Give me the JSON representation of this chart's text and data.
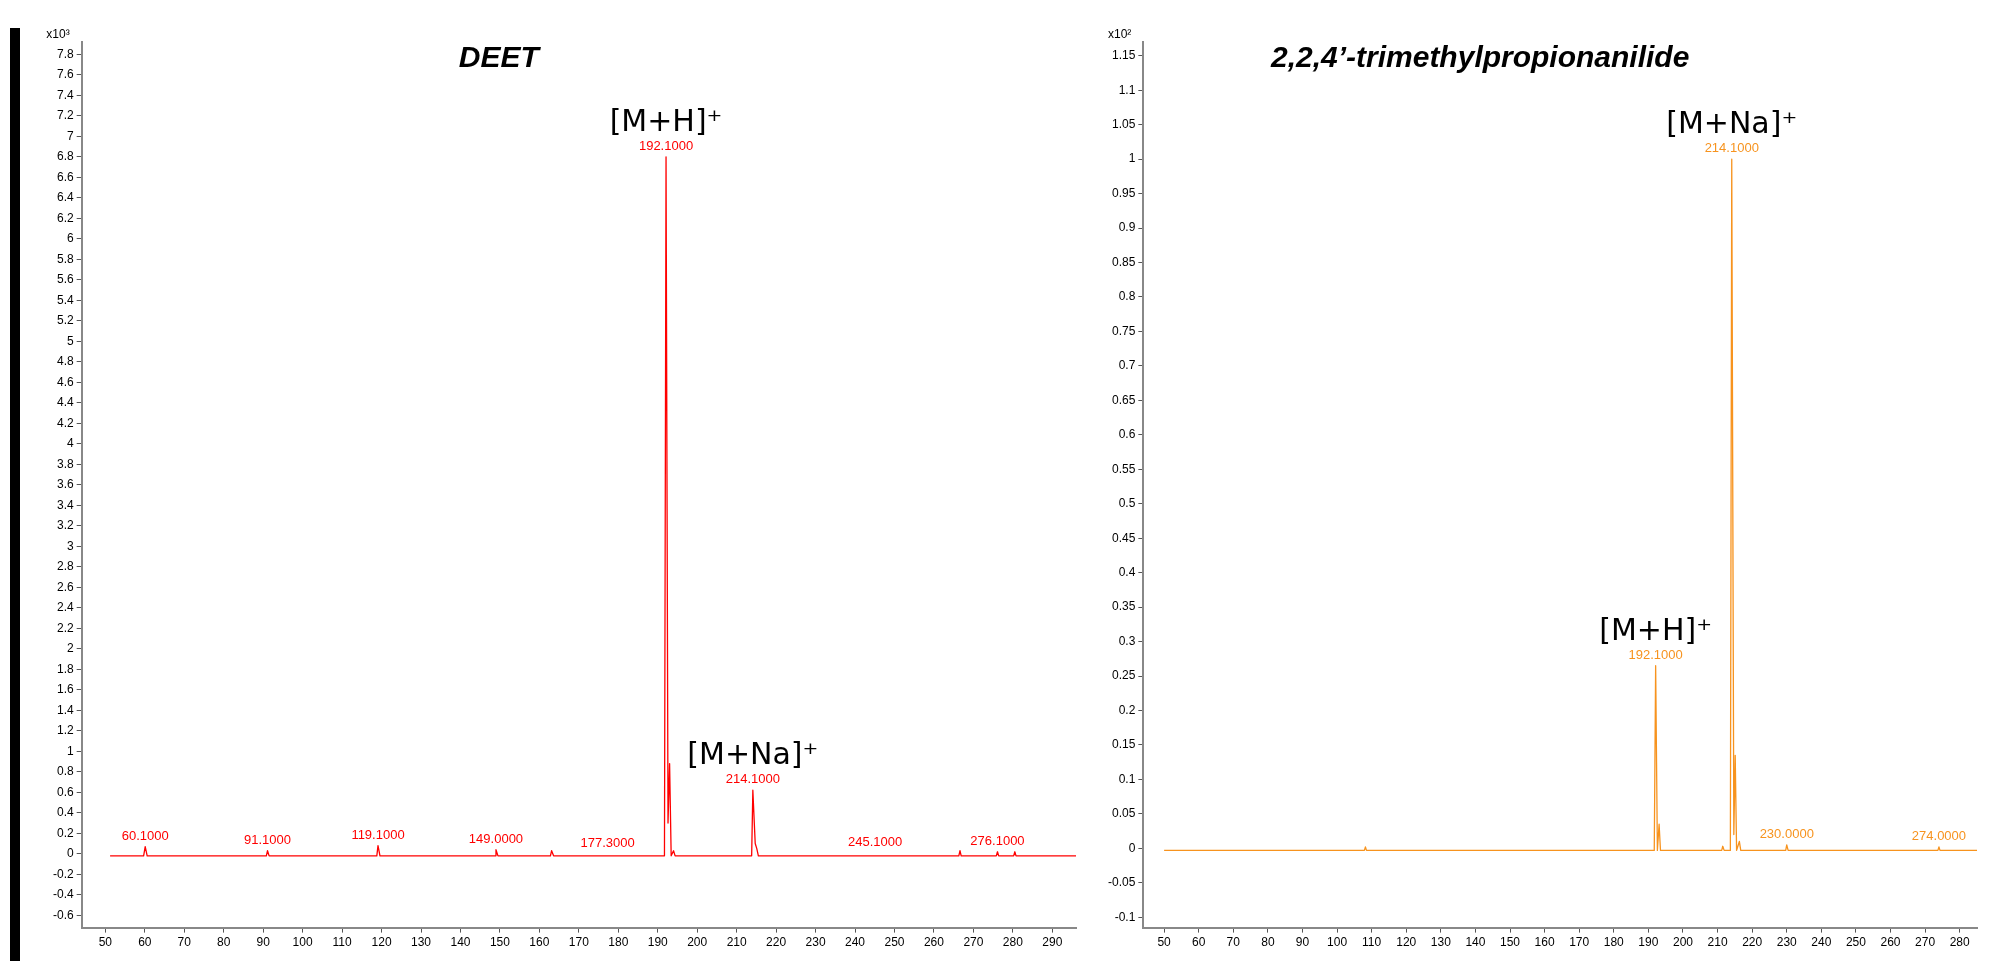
{
  "chart_data": [
    {
      "type": "line",
      "title": "DEET",
      "ylabel": "x10³",
      "xlim": [
        44,
        296
      ],
      "ylim": [
        -0.72,
        7.92
      ],
      "xticks": [
        50,
        60,
        70,
        80,
        90,
        100,
        110,
        120,
        130,
        140,
        150,
        160,
        170,
        180,
        190,
        200,
        210,
        220,
        230,
        240,
        250,
        260,
        270,
        280,
        290
      ],
      "yticks": [
        -0.6,
        -0.4,
        -0.2,
        0,
        0.2,
        0.4,
        0.6,
        0.8,
        1,
        1.2,
        1.4,
        1.6,
        1.8,
        2,
        2.2,
        2.4,
        2.6,
        2.8,
        3,
        3.2,
        3.4,
        3.6,
        3.8,
        4,
        4.2,
        4.4,
        4.6,
        4.8,
        5,
        5.2,
        5.4,
        5.6,
        5.8,
        6,
        6.2,
        6.4,
        6.6,
        6.8,
        7,
        7.2,
        7.4,
        7.6,
        7.8
      ],
      "grid": false,
      "legend": false,
      "marker": "none",
      "line_style": "solid",
      "series": [
        {
          "color": "#ff0000",
          "x": [
            51.2,
            59.7,
            60.1,
            60.6,
            90.8,
            91.1,
            91.5,
            118.8,
            119.1,
            119.6,
            148.8,
            149.0,
            149.5,
            162.8,
            163.1,
            163.6,
            191.7,
            192.1,
            192.6,
            193.0,
            193.4,
            194.0,
            194.4,
            213.8,
            214.1,
            214.7,
            215.1,
            215.5,
            266.3,
            266.6,
            266.9,
            275.8,
            276.1,
            276.4,
            280.2,
            280.5,
            280.8,
            296
          ],
          "values": [
            -0.02,
            -0.02,
            0.07,
            -0.02,
            -0.02,
            0.03,
            -0.02,
            -0.02,
            0.08,
            -0.02,
            -0.02,
            0.04,
            -0.02,
            -0.02,
            0.03,
            -0.02,
            -0.02,
            6.8,
            0.3,
            0.88,
            -0.02,
            0.03,
            -0.02,
            -0.02,
            0.62,
            0.1,
            0.05,
            -0.02,
            -0.02,
            0.03,
            -0.02,
            -0.02,
            0.02,
            -0.02,
            -0.02,
            0.02,
            -0.02,
            -0.02
          ]
        }
      ],
      "annotations": [
        {
          "text": "60.1000",
          "x": 60.1,
          "y": 0.07
        },
        {
          "text": "91.1000",
          "x": 91.1,
          "y": 0.03
        },
        {
          "text": "119.1000",
          "x": 119.1,
          "y": 0.08
        },
        {
          "text": "149.0000",
          "x": 149.0,
          "y": 0.04
        },
        {
          "text": "177.3000",
          "x": 177.3,
          "y": 0
        },
        {
          "text": "192.1000",
          "x": 192.1,
          "y": 6.8
        },
        {
          "text": "214.1000",
          "x": 214.1,
          "y": 0.62
        },
        {
          "text": "245.1000",
          "x": 245.1,
          "y": 0.01
        },
        {
          "text": "276.1000",
          "x": 276.1,
          "y": 0.02
        },
        {
          "text": "[M+H]⁺",
          "x": 192.1,
          "y": 6.8
        },
        {
          "text": "[M+Na]⁺",
          "x": 214.1,
          "y": 0.62
        }
      ]
    },
    {
      "type": "line",
      "title": "2,2,4’-trimethylpropionanilide",
      "ylabel": "x10²",
      "xlim": [
        44,
        285
      ],
      "ylim": [
        -0.115,
        1.17
      ],
      "xticks": [
        50,
        60,
        70,
        80,
        90,
        100,
        110,
        120,
        130,
        140,
        150,
        160,
        170,
        180,
        190,
        200,
        210,
        220,
        230,
        240,
        250,
        260,
        270,
        280
      ],
      "yticks": [
        -0.1,
        -0.05,
        0,
        0.05,
        0.1,
        0.15,
        0.2,
        0.25,
        0.3,
        0.35,
        0.4,
        0.45,
        0.5,
        0.55,
        0.6,
        0.65,
        0.7,
        0.75,
        0.8,
        0.85,
        0.9,
        0.95,
        1,
        1.05,
        1.1,
        1.15
      ],
      "grid": false,
      "legend": false,
      "marker": "none",
      "line_style": "solid",
      "series": [
        {
          "color": "#f7931e",
          "x": [
            50,
            107.9,
            108.2,
            108.5,
            191.7,
            192.1,
            192.6,
            193.1,
            193.5,
            211.2,
            211.5,
            211.9,
            213.7,
            214.1,
            214.7,
            215.1,
            215.5,
            216.3,
            216.7,
            229.7,
            230.0,
            230.4,
            273.7,
            274.0,
            274.3,
            285
          ],
          "values": [
            -0.003,
            -0.003,
            0.002,
            -0.003,
            -0.003,
            0.265,
            -0.003,
            0.035,
            -0.003,
            -0.003,
            0.003,
            -0.003,
            -0.003,
            1.0,
            0.02,
            0.135,
            -0.003,
            0.01,
            -0.003,
            -0.003,
            0.005,
            -0.003,
            -0.003,
            0.002,
            -0.003,
            -0.003
          ]
        }
      ],
      "annotations": [
        {
          "text": "192.1000",
          "x": 192.1,
          "y": 0.265
        },
        {
          "text": "214.1000",
          "x": 214.1,
          "y": 1.0
        },
        {
          "text": "230.0000",
          "x": 230.0,
          "y": 0.005
        },
        {
          "text": "274.0000",
          "x": 274.0,
          "y": 0.002
        },
        {
          "text": "[M+H]⁺",
          "x": 192.1,
          "y": 0.265
        },
        {
          "text": "[M+Na]⁺",
          "x": 214.1,
          "y": 1.0
        }
      ]
    }
  ]
}
